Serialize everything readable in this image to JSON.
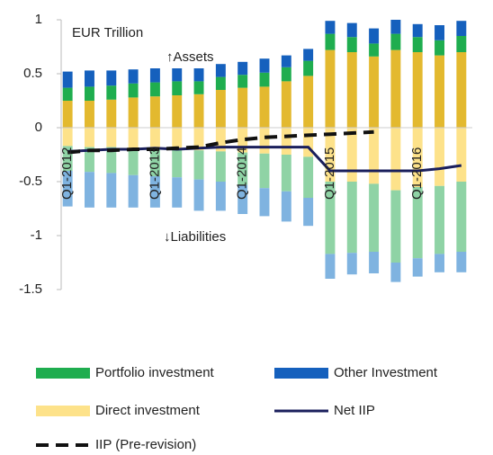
{
  "chart_data": {
    "type": "stacked_bar_line",
    "y_axis_label": "EUR Trillion",
    "annotations": [
      "↑Assets",
      "↓Liabilities"
    ],
    "categories": [
      "Q1-2012",
      null,
      null,
      null,
      "Q1-2013",
      null,
      null,
      null,
      "Q1-2014",
      null,
      null,
      null,
      "Q1-2015",
      null,
      null,
      null,
      "Q1-2016",
      null,
      null
    ],
    "ylim": [
      -1.5,
      1
    ],
    "yticks": [
      1,
      0.5,
      0,
      -0.5,
      -1,
      -1.5
    ],
    "series": [
      {
        "name": "Direct investment",
        "color": "#e3b92f",
        "liability_color": "#fde28a",
        "legend_color": "#fde28a",
        "values": [
          0.25,
          0.25,
          0.26,
          0.28,
          0.29,
          0.3,
          0.31,
          0.35,
          0.37,
          0.38,
          0.43,
          0.48,
          0.72,
          0.7,
          0.66,
          0.72,
          0.7,
          0.67,
          0.7
        ],
        "liability_values": [
          -0.17,
          -0.18,
          -0.18,
          -0.19,
          -0.2,
          -0.2,
          -0.21,
          -0.22,
          -0.23,
          -0.24,
          -0.25,
          -0.27,
          -0.5,
          -0.5,
          -0.52,
          -0.58,
          -0.55,
          -0.54,
          -0.5
        ]
      },
      {
        "name": "Portfolio investment",
        "color": "#1fad4f",
        "liability_color": "#8fd3a5",
        "legend_color": "#1fad4f",
        "values": [
          0.12,
          0.13,
          0.13,
          0.13,
          0.13,
          0.13,
          0.12,
          0.12,
          0.12,
          0.13,
          0.13,
          0.14,
          0.15,
          0.14,
          0.12,
          0.15,
          0.14,
          0.14,
          0.15
        ],
        "liability_values": [
          -0.23,
          -0.23,
          -0.24,
          -0.25,
          -0.25,
          -0.26,
          -0.27,
          -0.28,
          -0.3,
          -0.32,
          -0.34,
          -0.38,
          -0.67,
          -0.66,
          -0.63,
          -0.67,
          -0.66,
          -0.63,
          -0.65
        ]
      },
      {
        "name": "Other Investment",
        "color": "#1560bd",
        "liability_color": "#7fb3e0",
        "legend_color": "#1560bd",
        "values": [
          0.15,
          0.15,
          0.14,
          0.13,
          0.13,
          0.12,
          0.12,
          0.12,
          0.12,
          0.13,
          0.11,
          0.11,
          0.12,
          0.13,
          0.14,
          0.13,
          0.12,
          0.14,
          0.14
        ],
        "liability_values": [
          -0.33,
          -0.33,
          -0.32,
          -0.3,
          -0.29,
          -0.28,
          -0.29,
          -0.27,
          -0.27,
          -0.26,
          -0.28,
          -0.26,
          -0.23,
          -0.2,
          -0.2,
          -0.18,
          -0.17,
          -0.17,
          -0.19
        ]
      }
    ],
    "lines": [
      {
        "name": "Net IIP",
        "color": "#1a1f5c",
        "dashed": false,
        "values": [
          -0.22,
          -0.21,
          -0.2,
          -0.2,
          -0.19,
          -0.2,
          -0.19,
          -0.18,
          -0.18,
          -0.18,
          -0.18,
          -0.18,
          -0.4,
          -0.4,
          -0.4,
          -0.4,
          -0.4,
          -0.38,
          -0.35
        ]
      },
      {
        "name": "IIP (Pre-revision)",
        "color": "#111111",
        "dashed": true,
        "values": [
          -0.23,
          -0.21,
          -0.21,
          -0.2,
          -0.2,
          -0.19,
          -0.18,
          -0.14,
          -0.11,
          -0.09,
          -0.08,
          -0.07,
          -0.06,
          -0.05,
          -0.04,
          null,
          null,
          null,
          null
        ]
      }
    ]
  }
}
